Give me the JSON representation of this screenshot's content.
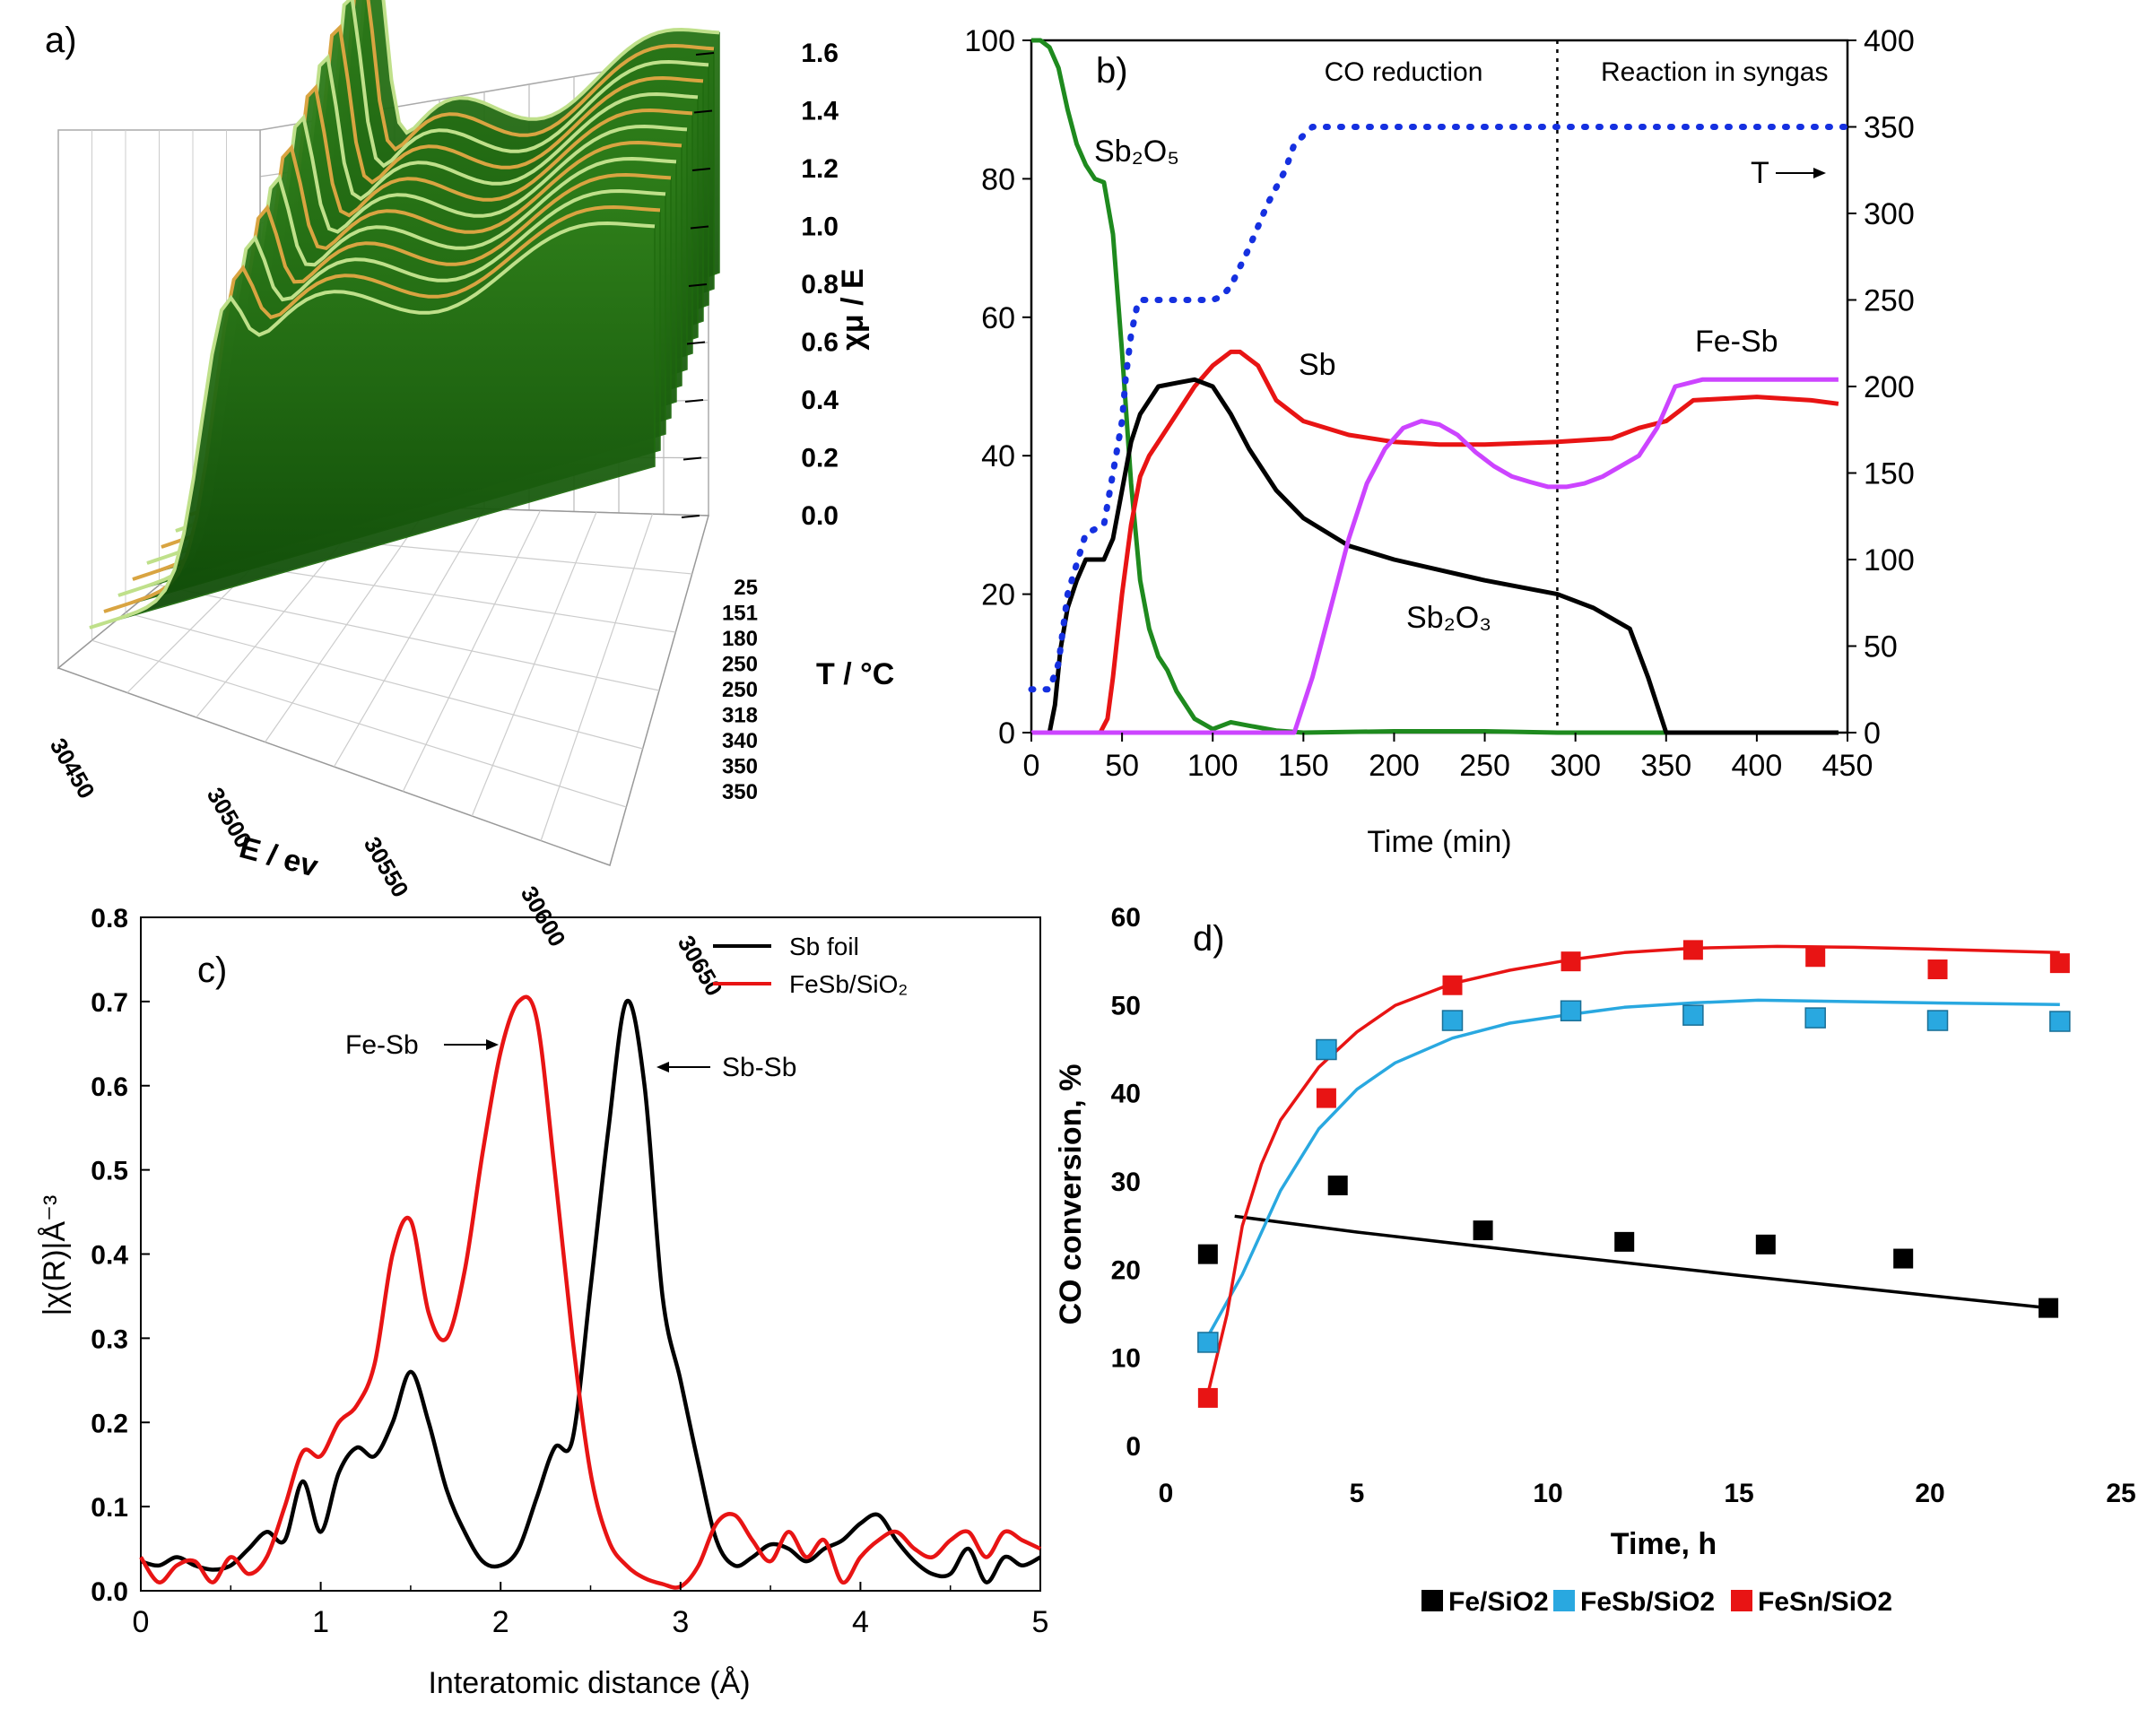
{
  "chart_data": [
    {
      "panel": "a)",
      "type": "surface3d",
      "xlabel": "E / ev",
      "ylabel": "T / °C",
      "zlabel": "χμ / E",
      "x_ticks": [
        "30450",
        "30500",
        "30550",
        "30600",
        "30650"
      ],
      "t_ticks": [
        "25",
        "151",
        "180",
        "250",
        "250",
        "318",
        "340",
        "350",
        "350"
      ],
      "z_ticks": [
        "0.0",
        "0.2",
        "0.4",
        "0.6",
        "0.8",
        "1.0",
        "1.2",
        "1.4",
        "1.6"
      ],
      "zlim": [
        0,
        1.6
      ],
      "colors": {
        "edge": "#1f6b0e",
        "face": "#d9a441",
        "light": "#bfe08a"
      }
    },
    {
      "panel": "b)",
      "type": "line",
      "xlabel": "Time (min)",
      "xlim": [
        0,
        450
      ],
      "ylim": [
        0,
        100
      ],
      "y2lim": [
        0,
        400
      ],
      "x_ticks": [
        "0",
        "50",
        "100",
        "150",
        "200",
        "250",
        "300",
        "350",
        "400",
        "450"
      ],
      "y_ticks": [
        "0",
        "20",
        "40",
        "60",
        "80",
        "100"
      ],
      "y2_ticks": [
        "0",
        "50",
        "100",
        "150",
        "200",
        "250",
        "300",
        "350",
        "400"
      ],
      "region_labels": [
        "CO reduction",
        "Reaction in syngas"
      ],
      "divider_x": 290,
      "temperature_label": "T",
      "series": [
        {
          "name": "Sb2O5",
          "color": "#1e8a1e",
          "x": [
            0,
            5,
            10,
            15,
            20,
            25,
            30,
            35,
            40,
            45,
            50,
            55,
            60,
            65,
            70,
            75,
            80,
            85,
            90,
            100,
            110,
            120,
            135,
            150,
            200,
            250,
            290,
            350,
            400,
            445
          ],
          "y": [
            100,
            100,
            99,
            96,
            90,
            85,
            82,
            80,
            79.5,
            72,
            55,
            36,
            22,
            15,
            11,
            9,
            6,
            4,
            2,
            0.5,
            1.5,
            1,
            0.3,
            0,
            0.2,
            0.2,
            0,
            0,
            0,
            0
          ]
        },
        {
          "name": "Sb",
          "color": "#e81414",
          "x": [
            0,
            38,
            42,
            45,
            50,
            55,
            60,
            65,
            70,
            80,
            90,
            100,
            110,
            115,
            125,
            135,
            150,
            175,
            200,
            225,
            250,
            290,
            320,
            335,
            350,
            365,
            400,
            430,
            445
          ],
          "y": [
            0,
            0,
            2,
            8,
            20,
            30,
            37,
            40,
            42,
            46,
            50,
            53,
            55,
            55,
            53,
            48,
            45,
            43,
            42,
            41.6,
            41.6,
            42,
            42.5,
            44,
            45,
            48,
            48.5,
            48,
            47.5
          ]
        },
        {
          "name": "Sb2O3",
          "color": "#000000",
          "x": [
            0,
            10,
            13,
            16,
            20,
            25,
            30,
            35,
            40,
            45,
            50,
            55,
            60,
            70,
            80,
            90,
            100,
            110,
            120,
            135,
            150,
            175,
            200,
            250,
            290,
            310,
            330,
            340,
            345,
            350,
            445
          ],
          "y": [
            0,
            0,
            4,
            12,
            18,
            22,
            25,
            25,
            25,
            28,
            35,
            42,
            46,
            50,
            50.5,
            51,
            50,
            46,
            41,
            35,
            31,
            27,
            25,
            22,
            20,
            18,
            15,
            8,
            4,
            0,
            0
          ]
        },
        {
          "name": "Fe-Sb",
          "color": "#cc44ff",
          "x": [
            0,
            145,
            155,
            165,
            175,
            185,
            195,
            205,
            215,
            225,
            235,
            245,
            255,
            265,
            275,
            285,
            295,
            305,
            315,
            325,
            335,
            345,
            355,
            370,
            400,
            445
          ],
          "y": [
            0,
            0,
            8,
            18,
            28,
            36,
            41,
            44,
            45,
            44.5,
            43,
            40.5,
            38.5,
            37,
            36.2,
            35.5,
            35.5,
            36,
            37,
            38.5,
            40,
            44,
            50,
            51,
            51,
            51
          ]
        },
        {
          "name": "T",
          "color": "#1530e0",
          "axis": "right",
          "dashed": true,
          "x": [
            0,
            10,
            15,
            20,
            30,
            40,
            45,
            50,
            52,
            55,
            58,
            60,
            70,
            80,
            90,
            100,
            105,
            110,
            120,
            130,
            140,
            145,
            155,
            175,
            200,
            250,
            300,
            350,
            400,
            450
          ],
          "y": [
            25,
            25,
            40,
            80,
            115,
            120,
            150,
            180,
            205,
            230,
            245,
            250,
            250,
            250,
            250,
            250,
            252,
            258,
            280,
            305,
            325,
            340,
            350,
            350,
            350,
            350,
            350,
            350,
            350,
            350
          ]
        }
      ],
      "annotations": [
        "Sb₂O₅",
        "Sb",
        "Fe-Sb",
        "Sb₂O₃"
      ]
    },
    {
      "panel": "c)",
      "type": "line",
      "xlabel": "Interatomic distance (Å)",
      "ylabel": "|χ(R)|Å⁻³",
      "xlim": [
        0,
        5
      ],
      "ylim": [
        0,
        0.8
      ],
      "x_ticks": [
        "0",
        "1",
        "2",
        "3",
        "4",
        "5"
      ],
      "y_ticks": [
        "0.0",
        "0.1",
        "0.2",
        "0.3",
        "0.4",
        "0.5",
        "0.6",
        "0.7",
        "0.8"
      ],
      "legend_position": "top-right",
      "series": [
        {
          "name": "Sb foil",
          "color": "#000000",
          "x": [
            0,
            0.1,
            0.2,
            0.3,
            0.4,
            0.5,
            0.6,
            0.7,
            0.8,
            0.9,
            1.0,
            1.1,
            1.2,
            1.3,
            1.4,
            1.5,
            1.6,
            1.7,
            1.8,
            1.9,
            2.0,
            2.1,
            2.2,
            2.3,
            2.4,
            2.5,
            2.6,
            2.7,
            2.8,
            2.9,
            3.0,
            3.1,
            3.2,
            3.3,
            3.4,
            3.5,
            3.6,
            3.7,
            3.8,
            3.9,
            4.0,
            4.1,
            4.2,
            4.3,
            4.4,
            4.5,
            4.6,
            4.7,
            4.8,
            4.9,
            5.0
          ],
          "y": [
            0.035,
            0.03,
            0.04,
            0.03,
            0.025,
            0.03,
            0.05,
            0.07,
            0.06,
            0.13,
            0.07,
            0.14,
            0.17,
            0.16,
            0.2,
            0.26,
            0.2,
            0.12,
            0.07,
            0.035,
            0.03,
            0.05,
            0.11,
            0.17,
            0.18,
            0.36,
            0.55,
            0.7,
            0.6,
            0.35,
            0.25,
            0.15,
            0.06,
            0.03,
            0.04,
            0.055,
            0.05,
            0.035,
            0.05,
            0.06,
            0.08,
            0.09,
            0.06,
            0.035,
            0.02,
            0.02,
            0.05,
            0.01,
            0.04,
            0.03,
            0.04
          ]
        },
        {
          "name": "FeSb/SiO₂",
          "color": "#e81414",
          "x": [
            0,
            0.1,
            0.2,
            0.3,
            0.4,
            0.5,
            0.6,
            0.7,
            0.8,
            0.9,
            1.0,
            1.1,
            1.2,
            1.3,
            1.4,
            1.5,
            1.6,
            1.7,
            1.8,
            1.9,
            2.0,
            2.1,
            2.2,
            2.3,
            2.4,
            2.5,
            2.6,
            2.7,
            2.8,
            2.9,
            3.0,
            3.1,
            3.2,
            3.3,
            3.4,
            3.5,
            3.6,
            3.7,
            3.8,
            3.9,
            4.0,
            4.1,
            4.2,
            4.3,
            4.4,
            4.5,
            4.6,
            4.7,
            4.8,
            4.9,
            5.0
          ],
          "y": [
            0.04,
            0.01,
            0.03,
            0.035,
            0.01,
            0.04,
            0.02,
            0.04,
            0.1,
            0.165,
            0.16,
            0.2,
            0.22,
            0.27,
            0.4,
            0.44,
            0.33,
            0.3,
            0.38,
            0.52,
            0.64,
            0.7,
            0.68,
            0.5,
            0.3,
            0.14,
            0.06,
            0.03,
            0.015,
            0.008,
            0.005,
            0.03,
            0.08,
            0.09,
            0.06,
            0.035,
            0.07,
            0.04,
            0.06,
            0.01,
            0.04,
            0.06,
            0.07,
            0.05,
            0.04,
            0.06,
            0.07,
            0.04,
            0.07,
            0.06,
            0.05
          ]
        }
      ],
      "annotations": [
        "Fe-Sb",
        "Sb-Sb"
      ]
    },
    {
      "panel": "d)",
      "type": "scatter",
      "xlabel": "Time, h",
      "ylabel": "CO conversion, %",
      "xlim": [
        0,
        25
      ],
      "ylim": [
        0,
        60
      ],
      "x_ticks": [
        "0",
        "5",
        "10",
        "15",
        "20",
        "25"
      ],
      "y_ticks": [
        "0",
        "10",
        "20",
        "30",
        "40",
        "50",
        "60"
      ],
      "legend_position": "bottom",
      "series": [
        {
          "name": "Fe/SiO2",
          "color": "#000000",
          "x": [
            1.1,
            4.5,
            8.3,
            12,
            15.7,
            19.3,
            23.1
          ],
          "y": [
            21.8,
            29.6,
            24.5,
            23.2,
            22.9,
            21.3,
            15.7
          ],
          "fit_x": [
            1.8,
            5,
            10,
            15,
            20,
            23.1
          ],
          "fit_y": [
            26.1,
            24.3,
            21.8,
            19.4,
            17.1,
            15.7
          ]
        },
        {
          "name": "FeSb/SiO2",
          "color": "#29a8e0",
          "x": [
            1.1,
            4.2,
            7.5,
            10.6,
            13.8,
            17,
            20.2,
            23.4
          ],
          "y": [
            11.8,
            45,
            48.3,
            49.4,
            48.9,
            48.6,
            48.3,
            48.2
          ],
          "fit_x": [
            1.1,
            2,
            3,
            4,
            5,
            6,
            7.5,
            9,
            10.6,
            12,
            13.8,
            15.5,
            17,
            20,
            23.4
          ],
          "fit_y": [
            12.5,
            19.5,
            29,
            36,
            40.5,
            43.5,
            46.3,
            48,
            49,
            49.8,
            50.3,
            50.6,
            50.5,
            50.3,
            50.1
          ]
        },
        {
          "name": "FeSn/SiO2",
          "color": "#e81414",
          "x": [
            1.1,
            4.2,
            7.5,
            10.6,
            13.8,
            17,
            20.2,
            23.4
          ],
          "y": [
            5.5,
            39.5,
            52.3,
            55,
            56.3,
            55.5,
            54.1,
            54.8
          ],
          "fit_x": [
            1.1,
            1.6,
            2,
            2.5,
            3,
            4,
            5,
            6,
            7.5,
            9,
            10.6,
            12,
            13.8,
            16,
            18,
            20,
            23.4
          ],
          "fit_y": [
            6,
            15,
            25,
            32,
            37,
            43,
            47,
            50,
            52.5,
            54,
            55.2,
            56,
            56.5,
            56.7,
            56.6,
            56.4,
            56
          ]
        }
      ]
    }
  ]
}
